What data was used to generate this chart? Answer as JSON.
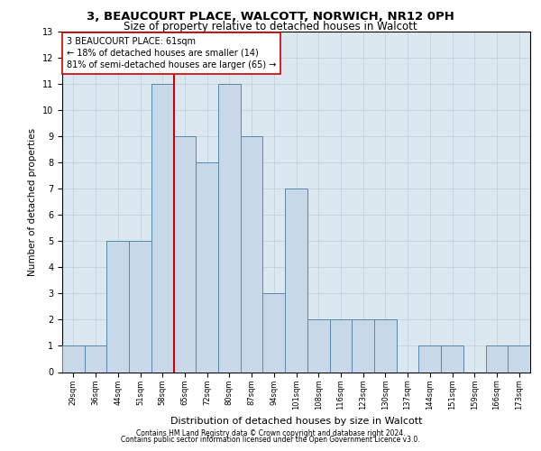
{
  "title1": "3, BEAUCOURT PLACE, WALCOTT, NORWICH, NR12 0PH",
  "title2": "Size of property relative to detached houses in Walcott",
  "xlabel": "Distribution of detached houses by size in Walcott",
  "ylabel": "Number of detached properties",
  "categories": [
    "29sqm",
    "36sqm",
    "44sqm",
    "51sqm",
    "58sqm",
    "65sqm",
    "72sqm",
    "80sqm",
    "87sqm",
    "94sqm",
    "101sqm",
    "108sqm",
    "116sqm",
    "123sqm",
    "130sqm",
    "137sqm",
    "144sqm",
    "151sqm",
    "159sqm",
    "166sqm",
    "173sqm"
  ],
  "values": [
    1,
    1,
    5,
    5,
    11,
    9,
    8,
    11,
    9,
    3,
    7,
    2,
    2,
    2,
    2,
    0,
    1,
    1,
    0,
    1,
    1
  ],
  "bar_color": "#c8d8e8",
  "bar_edge_color": "#5588aa",
  "subject_line_index": 4,
  "subject_line_color": "#cc0000",
  "annotation_text": "3 BEAUCOURT PLACE: 61sqm\n← 18% of detached houses are smaller (14)\n81% of semi-detached houses are larger (65) →",
  "annotation_box_color": "#ffffff",
  "annotation_box_edge": "#cc0000",
  "ylim": [
    0,
    13
  ],
  "yticks": [
    0,
    1,
    2,
    3,
    4,
    5,
    6,
    7,
    8,
    9,
    10,
    11,
    12,
    13
  ],
  "footnote1": "Contains HM Land Registry data © Crown copyright and database right 2024.",
  "footnote2": "Contains public sector information licensed under the Open Government Licence v3.0.",
  "grid_color": "#c0ccd8",
  "background_color": "#dce8f0",
  "title1_fontsize": 9.5,
  "title2_fontsize": 8.5,
  "ylabel_fontsize": 7.5,
  "xlabel_fontsize": 8.0,
  "tick_fontsize": 7.0,
  "xtick_fontsize": 6.0,
  "annotation_fontsize": 7.0,
  "footnote_fontsize": 5.5
}
